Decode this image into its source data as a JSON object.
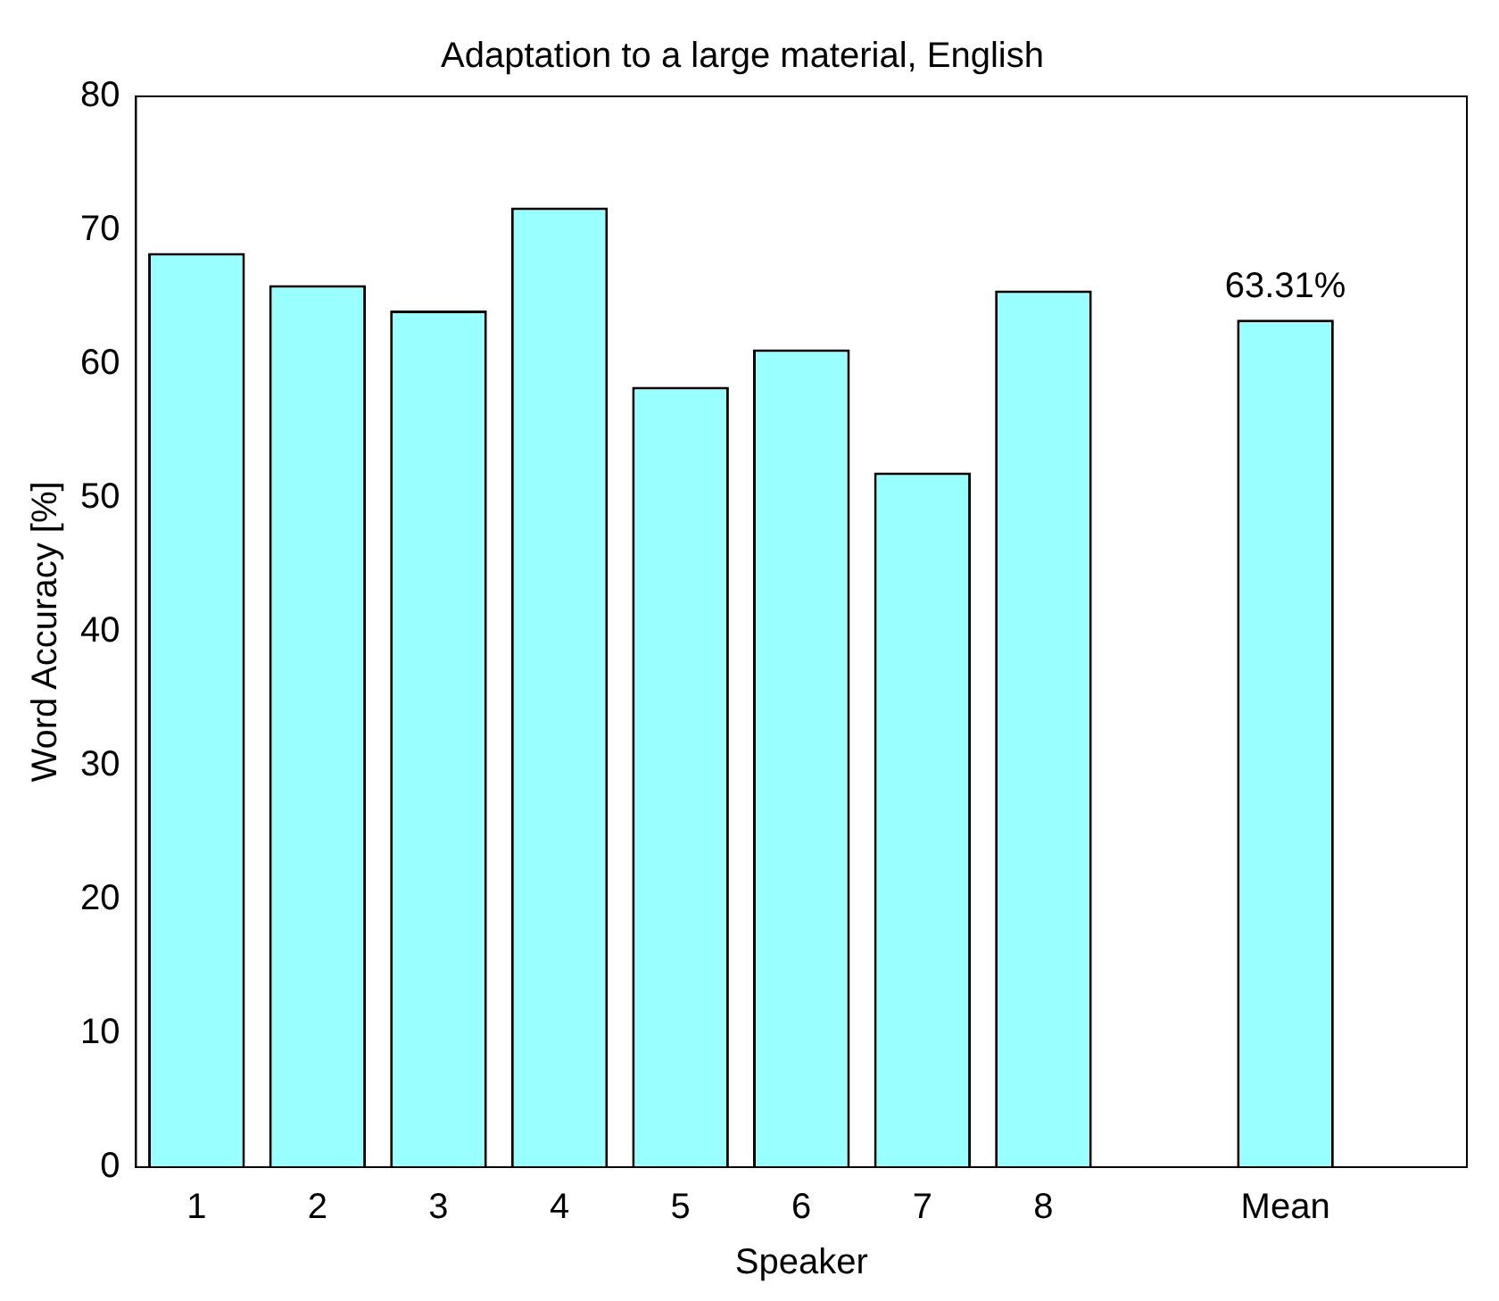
{
  "chart_data": {
    "type": "bar",
    "title": "Adaptation to a large material, English",
    "xlabel": "Speaker",
    "ylabel": "Word Accuracy [%]",
    "categories": [
      "1",
      "2",
      "3",
      "4",
      "5",
      "6",
      "7",
      "8",
      null,
      "Mean",
      null
    ],
    "values": [
      68.3,
      65.9,
      64.0,
      71.7,
      58.3,
      61.1,
      51.9,
      65.5,
      null,
      63.31,
      null
    ],
    "value_labels": [
      null,
      null,
      null,
      null,
      null,
      null,
      null,
      null,
      null,
      "63.31%",
      null
    ],
    "color": "#99ffff",
    "ylim": [
      0,
      80
    ],
    "yticks": [
      0,
      10,
      20,
      30,
      40,
      50,
      60,
      70,
      80
    ],
    "grid": false,
    "legend": false
  }
}
